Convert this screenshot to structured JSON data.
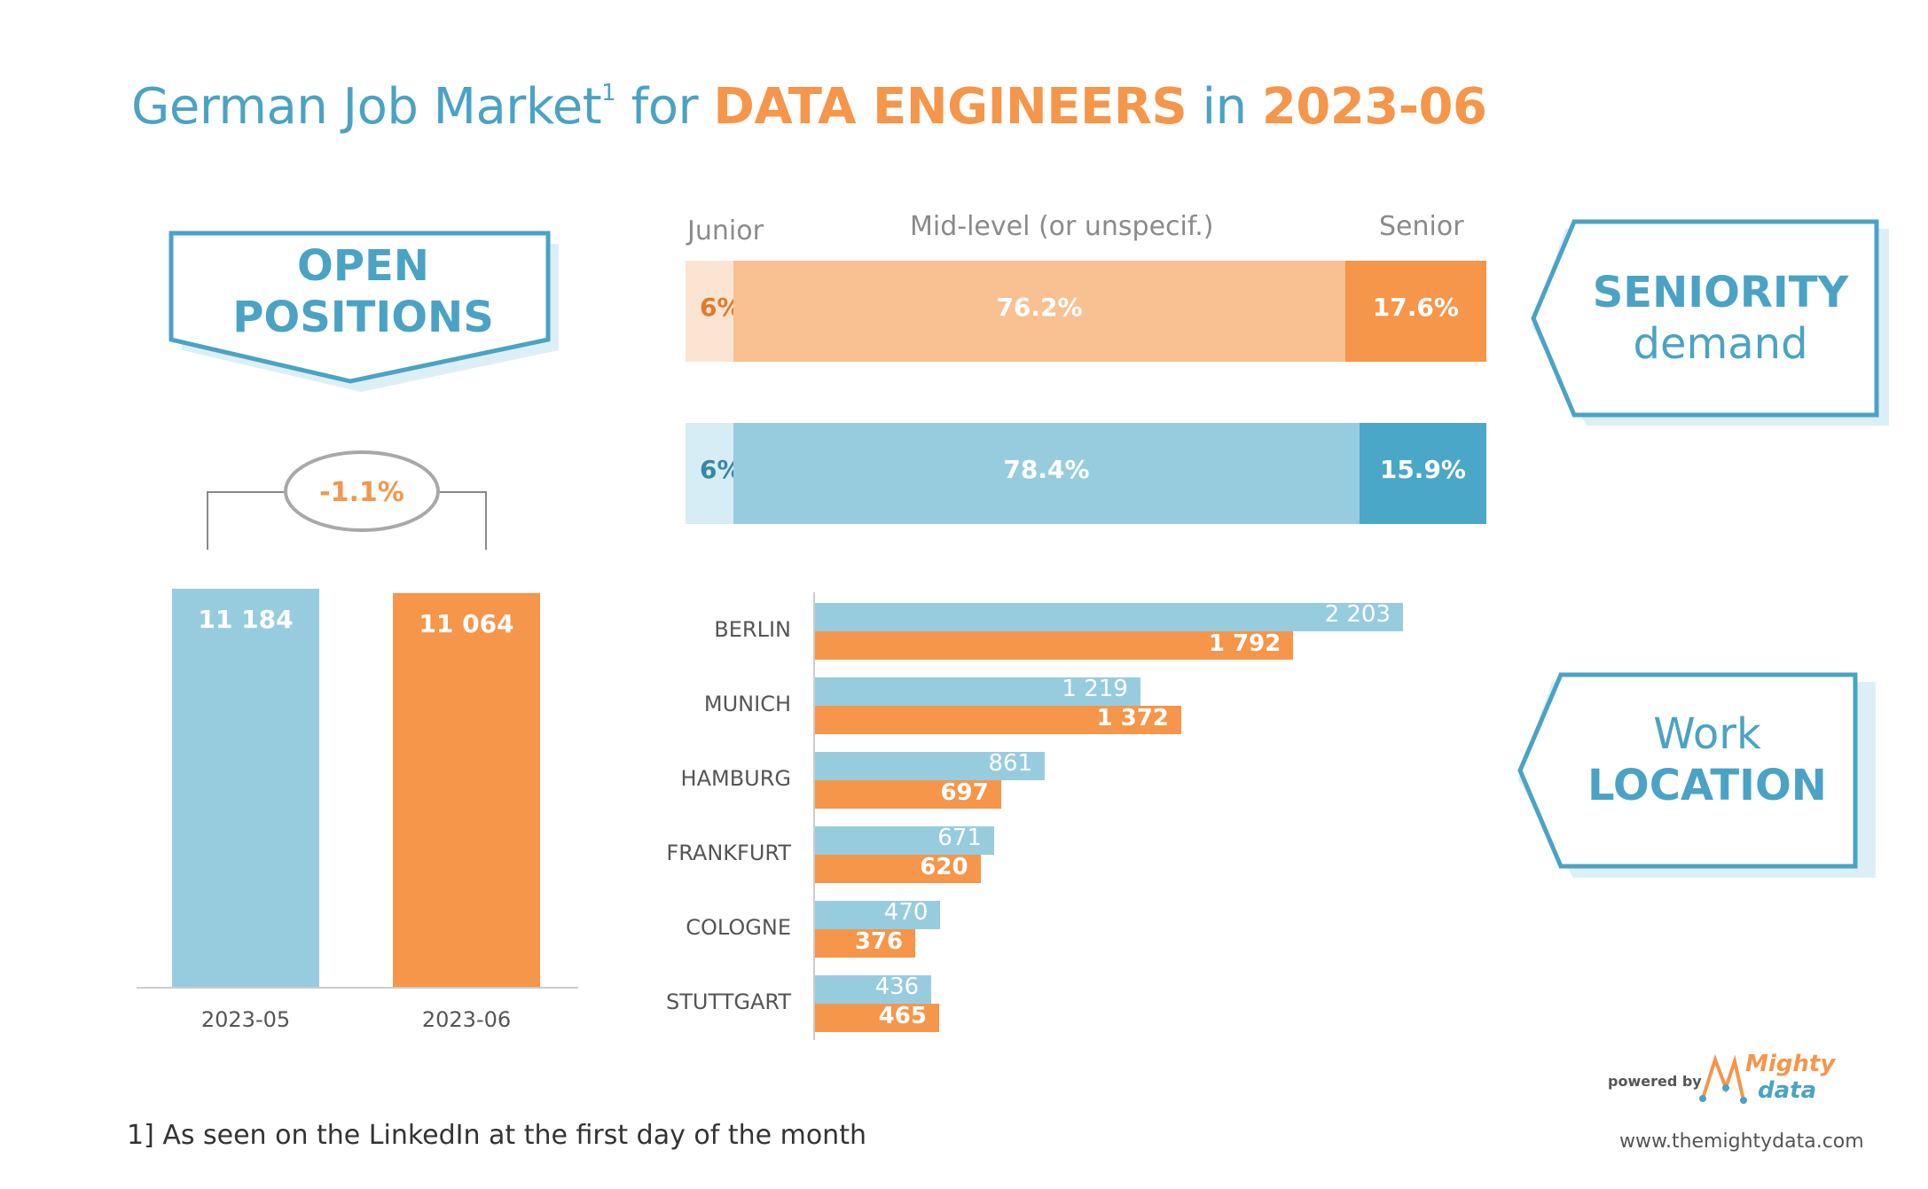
{
  "title": {
    "prefix": "German Job Market",
    "sup": "1",
    "mid": " for ",
    "role": "DATA ENGINEERS",
    "in": " in ",
    "period": "2023-06"
  },
  "callouts": {
    "open_line1": "OPEN",
    "open_line2": "POSITIONS",
    "seniority_line1": "SENIORITY",
    "seniority_line2": "demand",
    "work_line1": "Work",
    "work_line2": "LOCATION"
  },
  "colors": {
    "prev": "#97ccdf",
    "prev_light": "#d6edf5",
    "prev_dark": "#4aa7c8",
    "curr": "#f5964a",
    "curr_light": "#f9c092",
    "curr_pale": "#fce4d3",
    "accent_text": "#4aa3c4"
  },
  "chart_data": [
    {
      "type": "bar",
      "categories": [
        "2023-05",
        "2023-06"
      ],
      "values": [
        11184,
        11064
      ],
      "value_labels": [
        "11 184",
        "11 064"
      ],
      "change_label": "-1.1%",
      "ylim": [
        0,
        11184
      ]
    },
    {
      "type": "bar",
      "stacked": true,
      "orientation": "horizontal",
      "segment_headers": [
        "Junior",
        "Mid-level (or unspecif.)",
        "Senior"
      ],
      "series": [
        {
          "values": [
            6,
            76.2,
            17.6
          ],
          "labels": [
            "6%",
            "76.2%",
            "17.6%"
          ]
        },
        {
          "values": [
            6,
            78.4,
            15.9
          ],
          "labels": [
            "6%",
            "78.4%",
            "15.9%"
          ]
        }
      ]
    },
    {
      "type": "bar",
      "orientation": "horizontal",
      "categories": [
        "BERLIN",
        "MUNICH",
        "HAMBURG",
        "FRANKFURT",
        "COLOGNE",
        "STUTTGART"
      ],
      "series": [
        {
          "values": [
            2203,
            1219,
            861,
            671,
            470,
            436
          ],
          "labels": [
            "2 203",
            "1 219",
            "861",
            "671",
            "470",
            "436"
          ]
        },
        {
          "values": [
            1792,
            1372,
            697,
            620,
            376,
            465
          ],
          "labels": [
            "1 792",
            "1 372",
            "697",
            "620",
            "376",
            "465"
          ]
        }
      ],
      "xlim": [
        0,
        2203
      ]
    }
  ],
  "footer": {
    "footnote": "1] As seen on the LinkedIn at the first day of the month",
    "powered_by": "powered by",
    "logo_line1": "Mighty",
    "logo_line2": "data",
    "website": "www.themightydata.com"
  }
}
